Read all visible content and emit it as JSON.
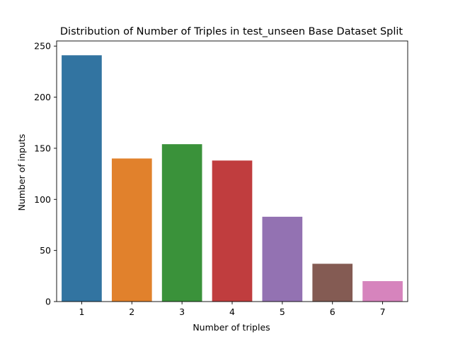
{
  "chart_data": {
    "type": "bar",
    "title": "Distribution of Number of Triples in test_unseen Base Dataset Split",
    "xlabel": "Number of triples",
    "ylabel": "Number of inputs",
    "categories": [
      "1",
      "2",
      "3",
      "4",
      "5",
      "6",
      "7"
    ],
    "values": [
      241,
      140,
      154,
      138,
      83,
      37,
      20
    ],
    "colors": [
      "#3274a1",
      "#e1812c",
      "#3a923a",
      "#c03d3e",
      "#9372b2",
      "#845b53",
      "#d684bd"
    ],
    "ylim": [
      0,
      255
    ],
    "yticks": [
      0,
      50,
      100,
      150,
      200,
      250
    ],
    "grid": false,
    "legend": "none"
  }
}
